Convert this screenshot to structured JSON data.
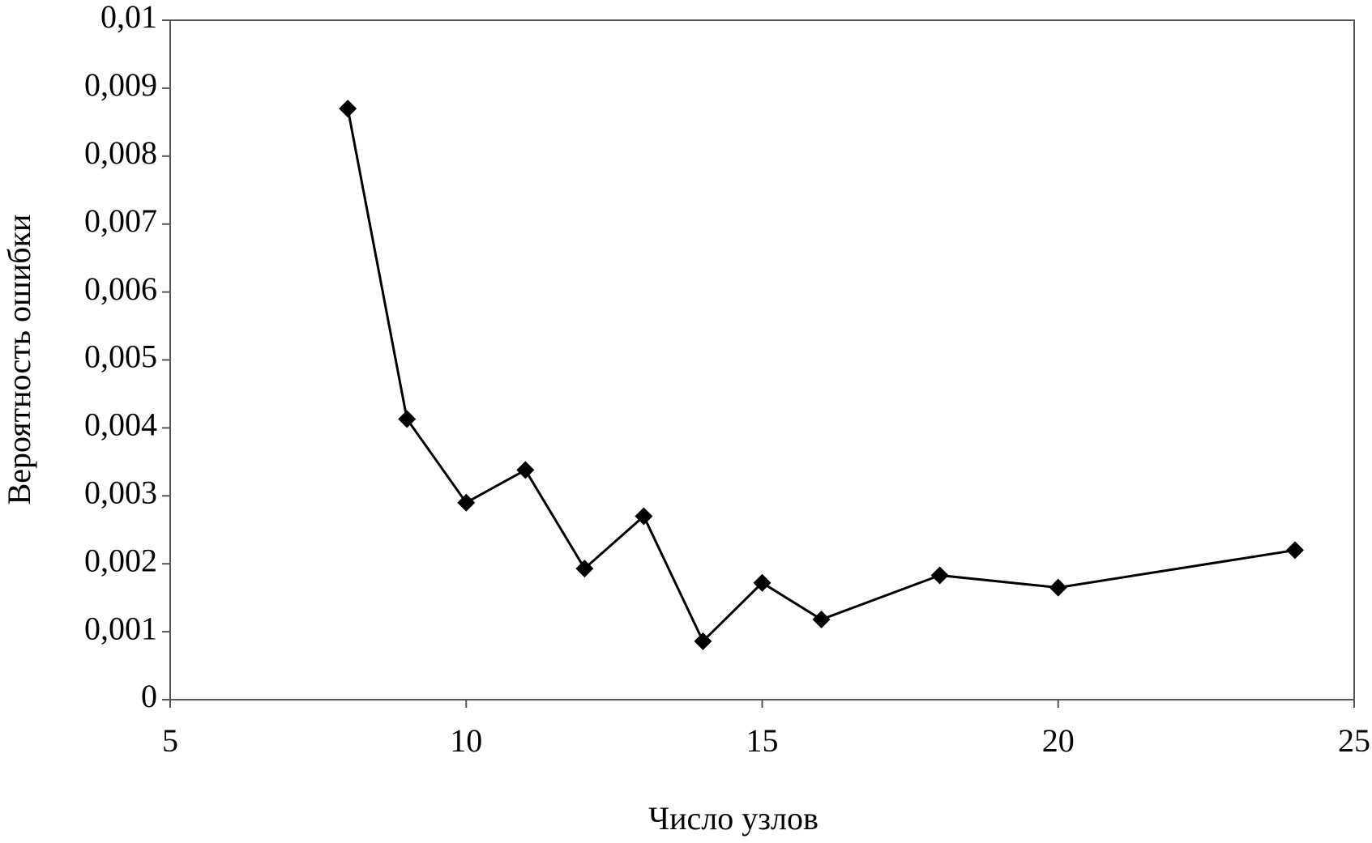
{
  "chart_data": {
    "type": "line",
    "x_label": "Число узлов",
    "y_label": "Вероятность ошибки",
    "x": [
      8,
      9,
      10,
      11,
      12,
      13,
      14,
      15,
      16,
      18,
      20,
      24
    ],
    "values": [
      0.0087,
      0.00413,
      0.0029,
      0.00338,
      0.00193,
      0.0027,
      0.00086,
      0.00172,
      0.00118,
      0.00183,
      0.00165,
      0.0022
    ],
    "color": "#000000",
    "xlim": [
      5,
      25
    ],
    "xticks": [
      5,
      10,
      15,
      20,
      25
    ],
    "ylim": [
      0,
      0.01
    ],
    "yticks": [
      0,
      {
        "value": 0.001,
        "label": "0,001"
      },
      {
        "value": 0.002,
        "label": "0,002"
      },
      {
        "value": 0.003,
        "label": "0,003"
      },
      {
        "value": 0.004,
        "label": "0,004"
      },
      {
        "value": 0.005,
        "label": "0,005"
      },
      {
        "value": 0.006,
        "label": "0,006"
      },
      {
        "value": 0.007,
        "label": "0,007"
      },
      {
        "value": 0.008,
        "label": "0,008"
      },
      {
        "value": 0.009,
        "label": "0,009"
      },
      {
        "value": 0.01,
        "label": "0,01"
      }
    ],
    "grid": false
  }
}
